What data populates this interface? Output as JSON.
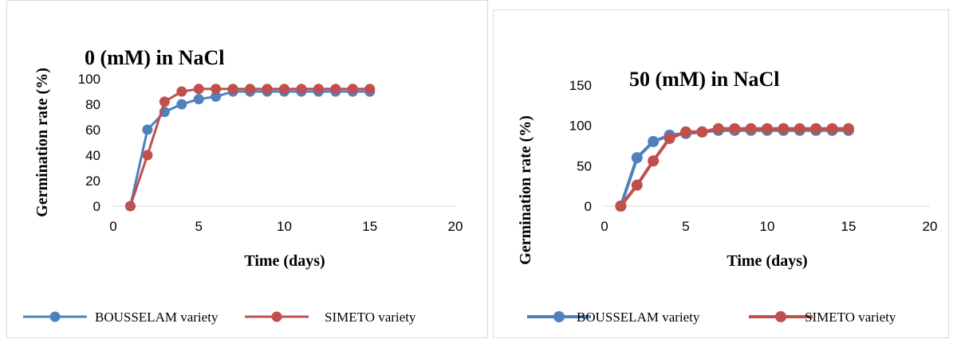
{
  "chart_data": [
    {
      "type": "line",
      "title": "0  (mM) in NaCl",
      "xlabel": "Time (days)",
      "ylabel": "Germination rate (%)",
      "xlim": [
        0,
        20
      ],
      "ylim": [
        0,
        100
      ],
      "x_ticks": [
        0,
        5,
        10,
        15,
        20
      ],
      "y_ticks": [
        0,
        20,
        40,
        60,
        80,
        100
      ],
      "grid": false,
      "legend_position": "bottom",
      "x": [
        1,
        2,
        3,
        4,
        5,
        6,
        7,
        8,
        9,
        10,
        11,
        12,
        13,
        14,
        15
      ],
      "series": [
        {
          "name": "BOUSSELAM variety",
          "color": "#4f81bd",
          "values": [
            0,
            60,
            74,
            80,
            84,
            86,
            90,
            90,
            90,
            90,
            90,
            90,
            90,
            90,
            90
          ]
        },
        {
          "name": "SIMETO variety",
          "color": "#c0504d",
          "values": [
            0,
            40,
            82,
            90,
            92,
            92,
            92,
            92,
            92,
            92,
            92,
            92,
            92,
            92,
            92
          ]
        }
      ]
    },
    {
      "type": "line",
      "title": "50 (mM) in NaCl",
      "xlabel": "Time (days)",
      "ylabel": "Germination rate (%)",
      "xlim": [
        0,
        20
      ],
      "ylim": [
        0,
        150
      ],
      "x_ticks": [
        0,
        5,
        10,
        15,
        20
      ],
      "y_ticks": [
        0,
        50,
        100,
        150
      ],
      "grid": false,
      "legend_position": "bottom",
      "x": [
        1,
        2,
        3,
        4,
        5,
        6,
        7,
        8,
        9,
        10,
        11,
        12,
        13,
        14,
        15
      ],
      "series": [
        {
          "name": "BOUSSELAM variety",
          "color": "#4f81bd",
          "values": [
            0,
            60,
            80,
            88,
            90,
            92,
            94,
            94,
            94,
            94,
            94,
            94,
            94,
            94,
            94
          ]
        },
        {
          "name": "SIMETO variety",
          "color": "#c0504d",
          "values": [
            0,
            26,
            56,
            84,
            92,
            92,
            96,
            96,
            96,
            96,
            96,
            96,
            96,
            96,
            96
          ]
        }
      ]
    }
  ]
}
